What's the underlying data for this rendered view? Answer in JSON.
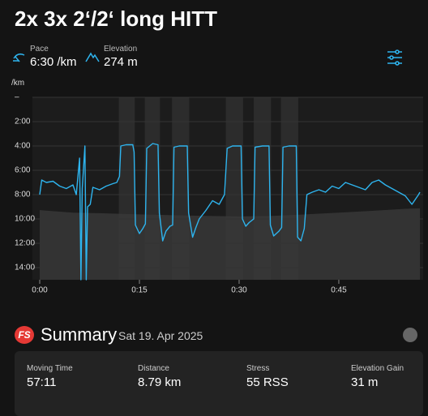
{
  "header": {
    "title": "2x 3x 2‘/2‘ long HITT"
  },
  "stats": [
    {
      "label": "Pace",
      "value": "6:30 /km"
    },
    {
      "label": "Elevation",
      "value": "274 m"
    }
  ],
  "chart_data": {
    "type": "line",
    "y_unit": "/km",
    "color": "#2eb4ee",
    "reversed": true,
    "x": [
      0,
      0.3,
      1,
      2,
      3,
      4,
      5,
      5.5,
      6.0,
      6.2,
      6.4,
      6.8,
      7.0,
      7.2,
      7.6,
      8,
      9,
      10,
      11,
      11.6,
      12.0,
      12.2,
      13,
      14,
      14.2,
      14.4,
      15,
      15.5,
      15.9,
      16.1,
      17,
      17.8,
      18.0,
      18.5,
      19,
      19.6,
      20.0,
      20.2,
      21,
      22.2,
      22.4,
      23,
      23.5,
      24,
      25,
      26,
      27,
      27.8,
      28.2,
      29,
      30.3,
      30.5,
      31,
      31.5,
      32.2,
      32.4,
      33.5,
      34.5,
      34.7,
      35.2,
      36,
      36.4,
      36.6,
      37.5,
      38.6,
      38.8,
      39.3,
      39.8,
      40.2,
      41,
      42,
      43,
      44,
      45,
      46,
      47,
      48,
      49,
      50,
      51,
      52,
      53,
      54,
      55,
      56,
      57,
      57.2
    ],
    "values": [
      8.0,
      6.8,
      7.0,
      6.9,
      7.3,
      7.5,
      7.2,
      8.0,
      5.0,
      15.0,
      7.5,
      4.0,
      15.0,
      9.0,
      8.8,
      7.4,
      7.6,
      7.3,
      7.1,
      7.0,
      6.5,
      4.0,
      3.9,
      3.9,
      4.5,
      10.5,
      11.2,
      10.8,
      10.4,
      4.2,
      3.8,
      3.9,
      9.5,
      11.8,
      11.0,
      10.6,
      10.5,
      4.1,
      4.0,
      4.0,
      9.5,
      11.5,
      10.7,
      10.0,
      9.3,
      8.5,
      8.8,
      8.0,
      4.2,
      4.0,
      4.0,
      10.0,
      10.6,
      10.3,
      10.0,
      4.1,
      4.0,
      4.0,
      10.5,
      11.4,
      11.0,
      10.7,
      4.1,
      4.0,
      4.0,
      11.5,
      11.8,
      10.8,
      8.0,
      7.8,
      7.6,
      7.8,
      7.3,
      7.5,
      7.0,
      7.2,
      7.4,
      7.6,
      7.0,
      6.8,
      7.2,
      7.5,
      7.8,
      8.1,
      8.8,
      8.0,
      7.8
    ],
    "elevation": {
      "color": "#3a3a3a",
      "x": [
        0,
        5,
        10,
        15,
        20,
        25,
        30,
        35,
        40,
        45,
        50,
        55,
        57.2
      ],
      "values": [
        275,
        265,
        262,
        258,
        255,
        252,
        250,
        252,
        258,
        265,
        272,
        280,
        282
      ]
    },
    "intervals": [
      [
        11.9,
        14.3
      ],
      [
        15.8,
        18.1
      ],
      [
        19.9,
        22.5
      ],
      [
        28.0,
        30.6
      ],
      [
        32.2,
        34.8
      ],
      [
        36.3,
        38.9
      ]
    ],
    "xlim": [
      0,
      57.2
    ],
    "ylim": [
      0,
      15
    ],
    "y2lim": [
      0,
      720
    ],
    "yticks": [
      {
        "value": 0,
        "label": "–"
      },
      {
        "value": 2,
        "label": "2:00"
      },
      {
        "value": 4,
        "label": "4:00"
      },
      {
        "value": 6,
        "label": "6:00"
      },
      {
        "value": 8,
        "label": "8:00"
      },
      {
        "value": 10,
        "label": "10:00"
      },
      {
        "value": 12,
        "label": "12:00"
      },
      {
        "value": 14,
        "label": "14:00"
      }
    ],
    "xticks": [
      {
        "value": 0,
        "label": "0:00"
      },
      {
        "value": 15,
        "label": "0:15"
      },
      {
        "value": 30,
        "label": "0:30"
      },
      {
        "value": 45,
        "label": "0:45"
      }
    ],
    "grid": true
  },
  "summary": {
    "logo": "FS",
    "title": "Summary",
    "date": "Sat 19. Apr 2025",
    "metrics": [
      {
        "label": "Moving Time",
        "value": "57:11"
      },
      {
        "label": "Distance",
        "value": "8.79 km"
      },
      {
        "label": "Stress",
        "value": "55 RSS"
      },
      {
        "label": "Elevation Gain",
        "value": "31 m"
      }
    ]
  }
}
